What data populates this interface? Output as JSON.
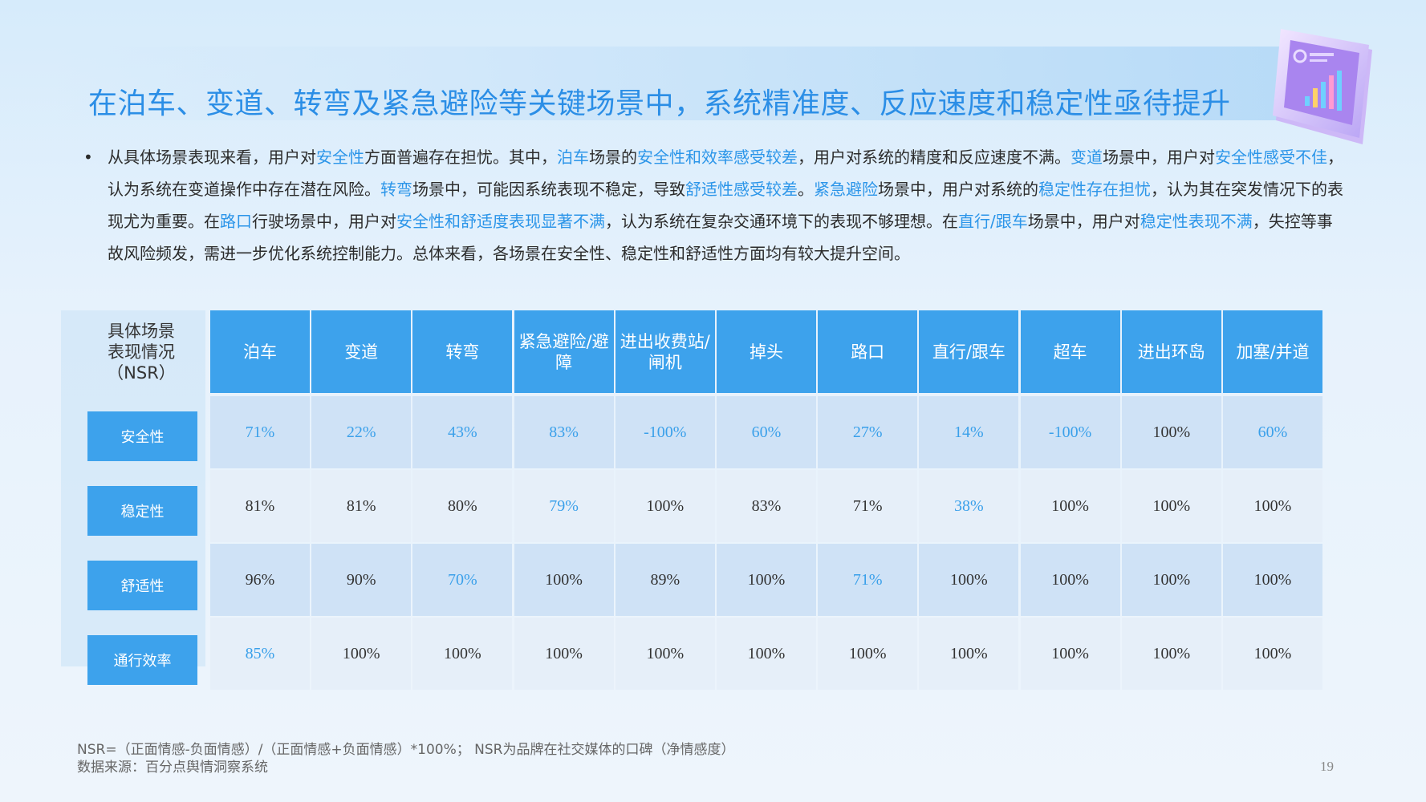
{
  "title": "在泊车、变道、转弯及紧急避险等关键场景中，系统精准度、反应速度和稳定性亟待提升",
  "bullet": {
    "marker": "•",
    "segments": [
      {
        "text": "从具体场景表现来看，用户对",
        "hl": false
      },
      {
        "text": "安全性",
        "hl": true
      },
      {
        "text": "方面普遍存在担忧。其中，",
        "hl": false
      },
      {
        "text": "泊车",
        "hl": true
      },
      {
        "text": "场景的",
        "hl": false
      },
      {
        "text": "安全性和效率感受较差",
        "hl": true
      },
      {
        "text": "，用户对系统的精度和反应速度不满。",
        "hl": false
      },
      {
        "text": "变道",
        "hl": true
      },
      {
        "text": "场景中，用户对",
        "hl": false
      },
      {
        "text": "安全性感受不佳",
        "hl": true
      },
      {
        "text": "，认为系统在变道操作中存在潜在风险。",
        "hl": false
      },
      {
        "text": "转弯",
        "hl": true
      },
      {
        "text": "场景中，可能因系统表现不稳定，导致",
        "hl": false
      },
      {
        "text": "舒适性感受较差",
        "hl": true
      },
      {
        "text": "。",
        "hl": false
      },
      {
        "text": "紧急避险",
        "hl": true
      },
      {
        "text": "场景中，用户对系统的",
        "hl": false
      },
      {
        "text": "稳定性存在担忧",
        "hl": true
      },
      {
        "text": "，认为其在突发情况下的表现尤为重要。在",
        "hl": false
      },
      {
        "text": "路口",
        "hl": true
      },
      {
        "text": "行驶场景中，用户对",
        "hl": false
      },
      {
        "text": "安全性和舒适度表现显著不满",
        "hl": true
      },
      {
        "text": "，认为系统在复杂交通环境下的表现不够理想。在",
        "hl": false
      },
      {
        "text": "直行/跟车",
        "hl": true
      },
      {
        "text": "场景中，用户对",
        "hl": false
      },
      {
        "text": "稳定性表现不满",
        "hl": true
      },
      {
        "text": "，失控等事故风险频发，需进一步优化系统控制能力。总体来看，各场景在安全性、稳定性和舒适性方面均有较大提升空间。",
        "hl": false
      }
    ]
  },
  "table": {
    "corner_label": [
      "具体场景",
      "表现情况",
      "（NSR）"
    ],
    "columns": [
      "泊车",
      "变道",
      "转弯",
      "紧急避险/避障",
      "进出收费站/闸机",
      "掉头",
      "路口",
      "直行/跟车",
      "超车",
      "进出环岛",
      "加塞/并道"
    ],
    "rows": [
      {
        "label": "安全性",
        "values": [
          "71%",
          "22%",
          "43%",
          "83%",
          "-100%",
          "60%",
          "27%",
          "14%",
          "-100%",
          "100%",
          "60%"
        ],
        "highlight": [
          true,
          true,
          true,
          true,
          true,
          true,
          true,
          true,
          true,
          false,
          true
        ]
      },
      {
        "label": "稳定性",
        "values": [
          "81%",
          "81%",
          "80%",
          "79%",
          "100%",
          "83%",
          "71%",
          "38%",
          "100%",
          "100%",
          "100%"
        ],
        "highlight": [
          false,
          false,
          false,
          true,
          false,
          false,
          false,
          true,
          false,
          false,
          false
        ]
      },
      {
        "label": "舒适性",
        "values": [
          "96%",
          "90%",
          "70%",
          "100%",
          "89%",
          "100%",
          "71%",
          "100%",
          "100%",
          "100%",
          "100%"
        ],
        "highlight": [
          false,
          false,
          true,
          false,
          false,
          false,
          true,
          false,
          false,
          false,
          false
        ]
      },
      {
        "label": "通行效率",
        "values": [
          "85%",
          "100%",
          "100%",
          "100%",
          "100%",
          "100%",
          "100%",
          "100%",
          "100%",
          "100%",
          "100%"
        ],
        "highlight": [
          true,
          false,
          false,
          false,
          false,
          false,
          false,
          false,
          false,
          false,
          false
        ]
      }
    ]
  },
  "footnote": {
    "line1": "NSR=（正面情感-负面情感）/（正面情感+负面情感）*100%； NSR为品牌在社交媒体的口碑（净情感度）",
    "line2": "数据来源：百分点舆情洞察系统"
  },
  "page_number": "19",
  "colors": {
    "accent": "#3da2ec",
    "title": "#2b8ee6",
    "highlight_text": "#2b95e9"
  }
}
